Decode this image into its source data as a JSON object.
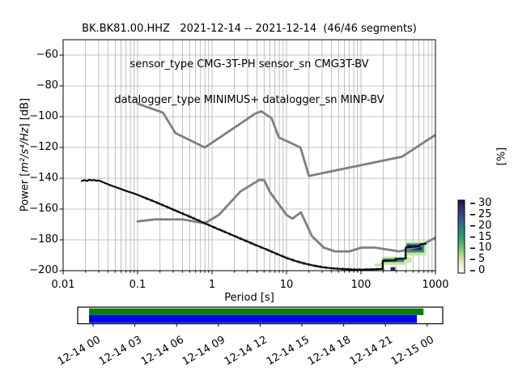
{
  "title": {
    "line1": "BK.BK81.00.HHZ   2021-12-14 -- 2021-12-14  (46/46 segments)",
    "line2": "sensor_type CMG-3T-PH sensor_sn CMG3T-BV",
    "line3": "datalogger_type MINIMUS+ datalogger_sn MINP-BV"
  },
  "chart_data": {
    "type": "line",
    "xlabel": "Period [s]",
    "ylabel": "Power [m²/s⁴/Hz] [dB]",
    "ylabel_prefix": "Power [",
    "ylabel_math": "m²/s⁴/Hz",
    "ylabel_suffix": "] [dB]",
    "xscale": "log",
    "xlim": [
      0.01,
      1000
    ],
    "ylim": [
      -200,
      -50
    ],
    "grid": true,
    "xticks": [
      0.01,
      0.1,
      1,
      10,
      100,
      1000
    ],
    "xtick_labels": [
      "0.01",
      "0.1",
      "1",
      "10",
      "100",
      "1000"
    ],
    "yticks": [
      -60,
      -80,
      -100,
      -120,
      -140,
      -160,
      -180,
      -200
    ],
    "ytick_labels": [
      "−60",
      "−80",
      "−100",
      "−120",
      "−140",
      "−160",
      "−180",
      "−200"
    ],
    "series": [
      {
        "name": "noise-model-low-NLNM",
        "color": "#7f7f7f",
        "width": 2.8,
        "points": [
          [
            0.1,
            -168
          ],
          [
            0.17,
            -166.7
          ],
          [
            0.4,
            -166.7
          ],
          [
            0.8,
            -169.2
          ],
          [
            1.24,
            -163.7
          ],
          [
            2.4,
            -148.6
          ],
          [
            4.3,
            -141.1
          ],
          [
            5,
            -141.1
          ],
          [
            6,
            -149
          ],
          [
            10,
            -163.8
          ],
          [
            12,
            -166.2
          ],
          [
            15.6,
            -162.1
          ],
          [
            21.9,
            -177.5
          ],
          [
            31.6,
            -185
          ],
          [
            45,
            -187.5
          ],
          [
            70,
            -187.5
          ],
          [
            101,
            -185
          ],
          [
            154,
            -185
          ],
          [
            328,
            -187.5
          ],
          [
            600,
            -184.4
          ],
          [
            1000,
            -178.5
          ]
        ]
      },
      {
        "name": "noise-model-high-NHNM",
        "color": "#7f7f7f",
        "width": 2.8,
        "points": [
          [
            0.1,
            -91.5
          ],
          [
            0.22,
            -97.4
          ],
          [
            0.32,
            -110.5
          ],
          [
            0.8,
            -120
          ],
          [
            3.8,
            -98
          ],
          [
            4.6,
            -96.5
          ],
          [
            6.3,
            -101
          ],
          [
            7.9,
            -113.5
          ],
          [
            15.4,
            -120
          ],
          [
            20,
            -138.5
          ],
          [
            354.8,
            -126
          ],
          [
            1000,
            -111.8
          ]
        ]
      },
      {
        "name": "psd-mode",
        "color": "#0a0a18",
        "width": 2.2,
        "points": [
          [
            0.0178,
            -141.8
          ],
          [
            0.019,
            -141.2
          ],
          [
            0.021,
            -141.7
          ],
          [
            0.0225,
            -140.9
          ],
          [
            0.024,
            -141.4
          ],
          [
            0.026,
            -141.1
          ],
          [
            0.028,
            -141.6
          ],
          [
            0.03,
            -141.4
          ],
          [
            0.033,
            -142.2
          ],
          [
            0.037,
            -143.2
          ],
          [
            0.042,
            -144.3
          ],
          [
            0.05,
            -145.6
          ],
          [
            0.06,
            -147
          ],
          [
            0.07,
            -148.2
          ],
          [
            0.085,
            -149.5
          ],
          [
            0.1,
            -150.7
          ],
          [
            0.13,
            -153
          ],
          [
            0.17,
            -155.2
          ],
          [
            0.22,
            -157.5
          ],
          [
            0.3,
            -160.3
          ],
          [
            0.4,
            -162.9
          ],
          [
            0.55,
            -165.7
          ],
          [
            0.75,
            -168.6
          ],
          [
            1,
            -171.3
          ],
          [
            1.4,
            -174.3
          ],
          [
            2,
            -177.5
          ],
          [
            2.8,
            -180.5
          ],
          [
            4,
            -183.7
          ],
          [
            5.5,
            -186.4
          ],
          [
            7.5,
            -189.2
          ],
          [
            10,
            -191.7
          ],
          [
            13,
            -193.6
          ],
          [
            17,
            -195.2
          ],
          [
            22,
            -196.5
          ],
          [
            30,
            -197.7
          ],
          [
            40,
            -198.4
          ],
          [
            55,
            -198.9
          ],
          [
            75,
            -199.2
          ],
          [
            100,
            -199.3
          ],
          [
            130,
            -199.2
          ],
          [
            165,
            -199
          ],
          [
            196,
            -198.8
          ],
          [
            196,
            -193.6
          ],
          [
            294,
            -193.4
          ],
          [
            294,
            -192.3
          ],
          [
            398,
            -192.2
          ],
          [
            398,
            -184.9
          ],
          [
            610,
            -184.2
          ],
          [
            610,
            -183.1
          ],
          [
            740,
            -182.5
          ]
        ]
      }
    ],
    "histogram_patches": [
      {
        "color": "#c9e6a0",
        "period": [
          152,
          200
        ],
        "db": [
          -195.3,
          -197.3
        ]
      },
      {
        "color": "#c9e6a0",
        "period": [
          190,
          390
        ],
        "db": [
          -190.9,
          -196.2
        ]
      },
      {
        "color": "#c9e6a0",
        "period": [
          395,
          480
        ],
        "db": [
          -191.4,
          -194.6
        ]
      },
      {
        "color": "#c9e6a0",
        "period": [
          395,
          755
        ],
        "db": [
          -181.2,
          -190.2
        ]
      },
      {
        "color": "#2f8e85",
        "period": [
          197,
          380
        ],
        "db": [
          -192.1,
          -194.4
        ]
      },
      {
        "color": "#2f8e85",
        "period": [
          405,
          705
        ],
        "db": [
          -182.3,
          -188.2
        ]
      },
      {
        "color": "#23265f",
        "period": [
          415,
          655
        ],
        "db": [
          -183.3,
          -186.6
        ]
      },
      {
        "color": "#3a1d5e",
        "period": [
          250,
          290
        ],
        "db": [
          -197.7,
          -200
        ]
      }
    ],
    "colorbar": {
      "label": "[%]",
      "tick_values": [
        30,
        25,
        20,
        15,
        10,
        5,
        0
      ],
      "tick_labels": [
        "30",
        "25",
        "20",
        "15",
        "10",
        "5",
        "0"
      ],
      "vmin": 0,
      "vmax": 31.5,
      "gradient_top_to_bottom": [
        "#2e1050",
        "#3d2a70",
        "#3a4f8b",
        "#2f718e",
        "#2a8f85",
        "#3dab6f",
        "#7cc463",
        "#c2e098",
        "#eef5d2",
        "#ffffff"
      ]
    },
    "timeline": {
      "tick_labels": [
        "12-14 00",
        "12-14 03",
        "12-14 06",
        "12-14 09",
        "12-14 12",
        "12-14 15",
        "12-14 18",
        "12-14 21",
        "12-15 00"
      ],
      "bars": [
        {
          "name": "coverage-top",
          "color": "#0a7d0a",
          "start_frac": -0.012,
          "end_frac": 0.989
        },
        {
          "name": "coverage-bottom",
          "color": "#0000ee",
          "start_frac": -0.012,
          "end_frac": 0.969
        }
      ]
    }
  }
}
